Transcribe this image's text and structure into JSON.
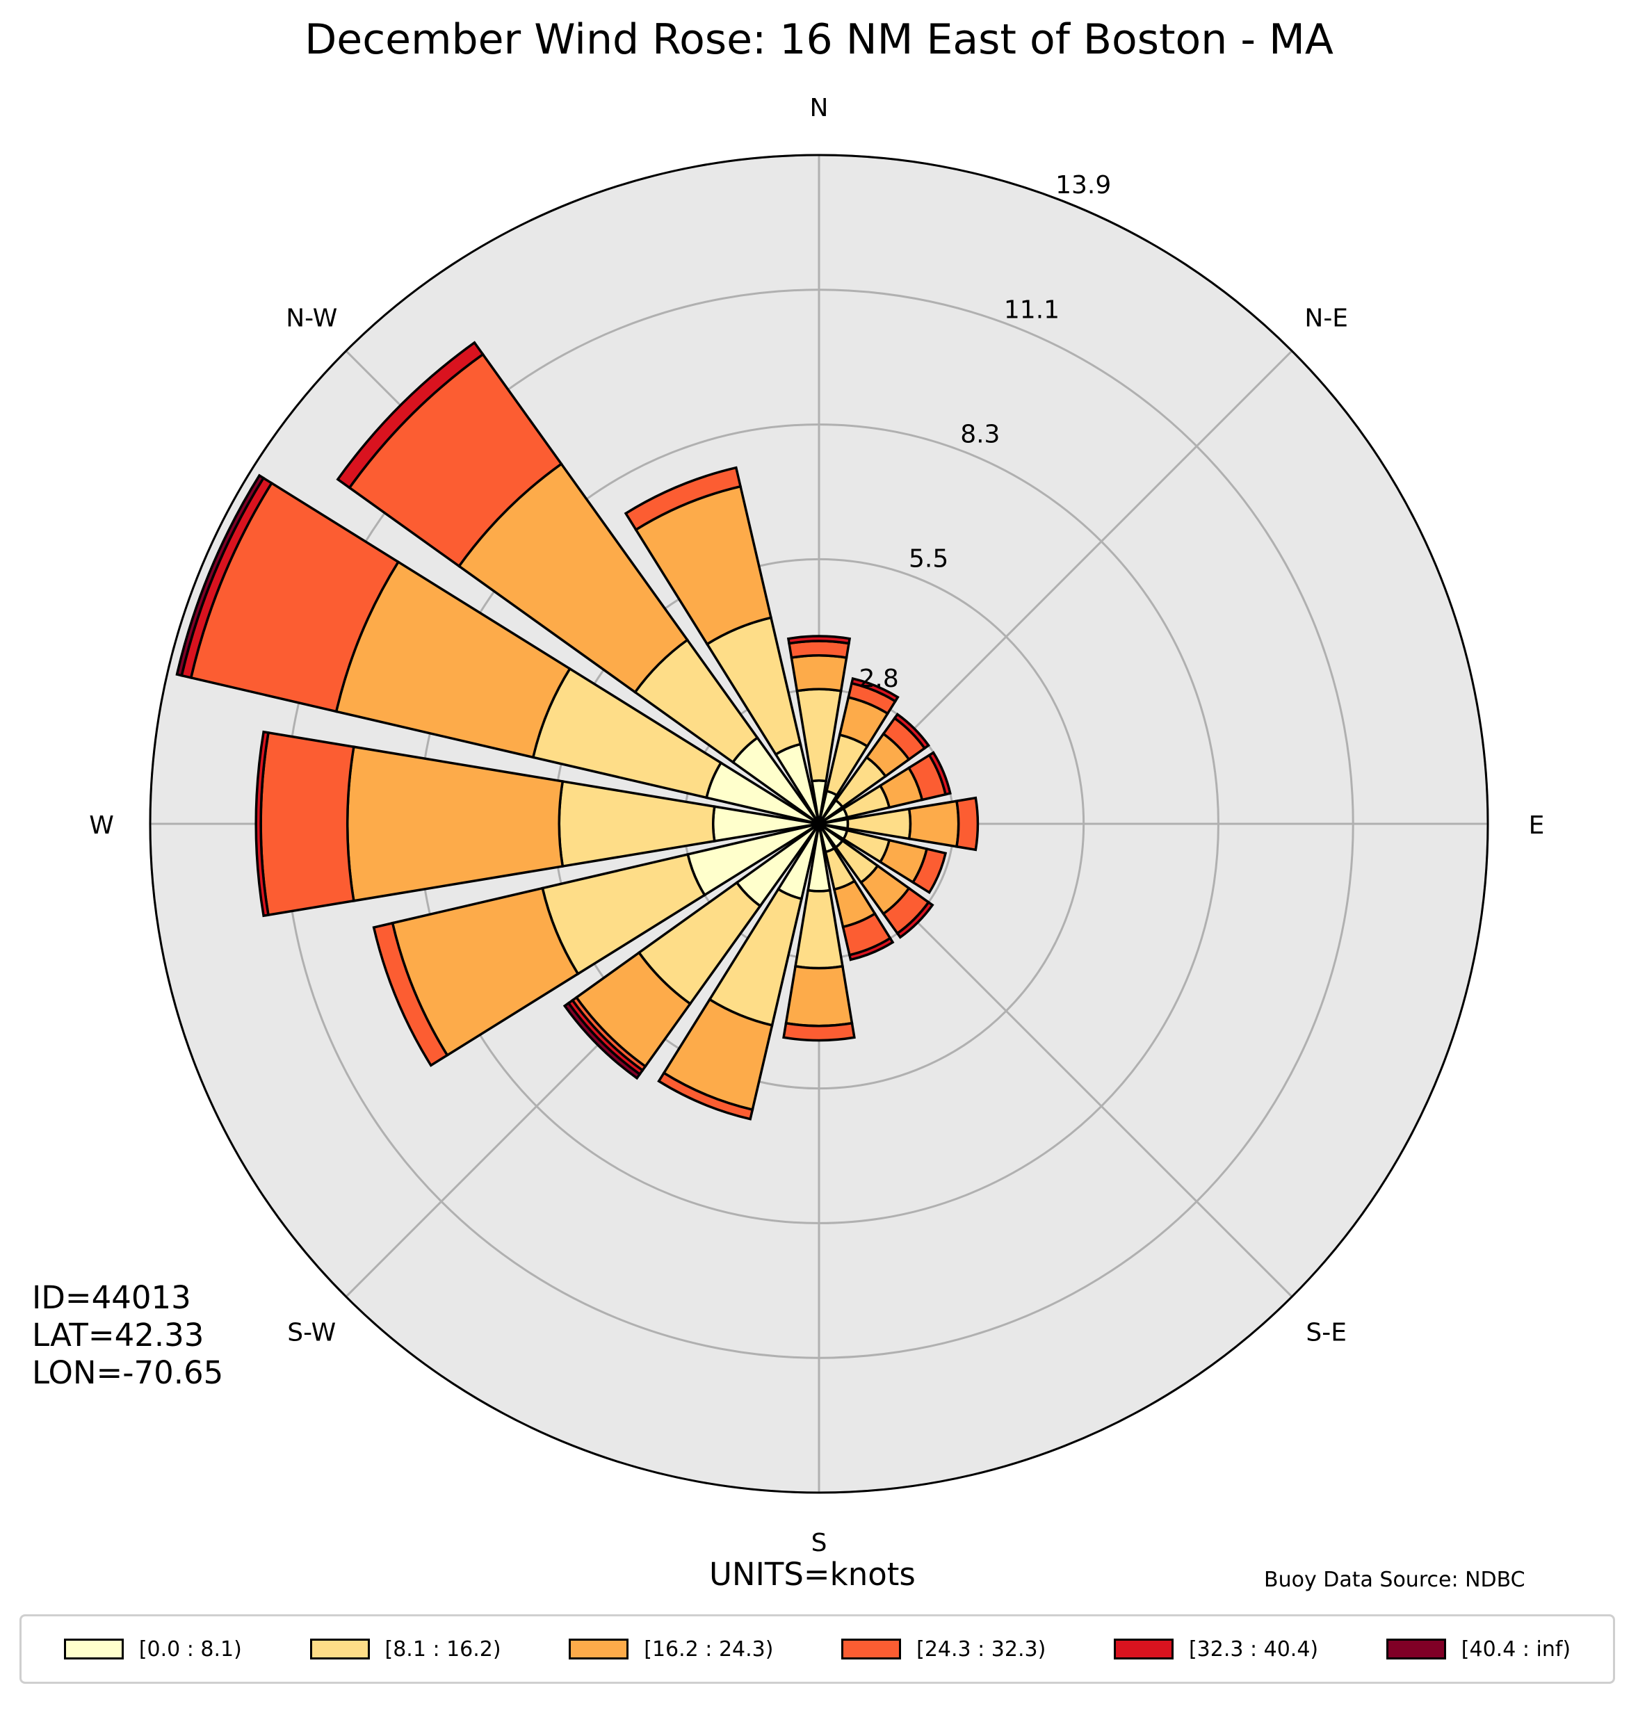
{
  "title": "December Wind Rose: 16 NM East of Boston - MA",
  "station": {
    "id": "ID=44013",
    "lat": "LAT=42.33",
    "lon": "LON=-70.65"
  },
  "units": "UNITS=knots",
  "source": "Buoy Data Source: NDBC",
  "colors": {
    "background": "#e8e8e8",
    "grid": "#b0b0b0",
    "bins": [
      "#ffffcc",
      "#fedd88",
      "#fdab4a",
      "#fc5d32",
      "#d9131f",
      "#800026"
    ]
  },
  "legend": [
    "[0.0 : 8.1)",
    "[8.1 : 16.2)",
    "[16.2 : 24.3)",
    "[24.3 : 32.3)",
    "[32.3 : 40.4)",
    "[40.4 : inf)"
  ],
  "chart_data": {
    "type": "wind-rose",
    "title": "December Wind Rose: 16 NM East of Boston - MA",
    "units": "knots",
    "radial_axis": {
      "ticks": [
        2.8,
        5.5,
        8.3,
        11.1,
        13.9
      ],
      "labels": [
        "2.8",
        "5.5",
        "8.3",
        "11.1",
        "13.9"
      ],
      "max": 13.9
    },
    "compass_labels": [
      "N",
      "N-E",
      "E",
      "S-E",
      "S",
      "S-W",
      "W",
      "N-W"
    ],
    "direction_deg": [
      0,
      22.5,
      45,
      67.5,
      90,
      112.5,
      135,
      157.5,
      180,
      202.5,
      225,
      247.5,
      270,
      292.5,
      315,
      337.5
    ],
    "bins": [
      "[0.0 : 8.1)",
      "[8.1 : 16.2)",
      "[16.2 : 24.3)",
      "[24.3 : 32.3)",
      "[32.3 : 40.4)",
      "[40.4 : inf)"
    ],
    "cumulative_frequency": [
      [
        0.9,
        2.8,
        3.5,
        3.8,
        3.9,
        3.9
      ],
      [
        0.7,
        1.9,
        2.7,
        3.0,
        3.1,
        3.1
      ],
      [
        0.6,
        1.7,
        2.3,
        2.7,
        2.8,
        2.8
      ],
      [
        0.6,
        1.5,
        2.2,
        2.7,
        2.8,
        2.8
      ],
      [
        0.6,
        1.9,
        2.9,
        3.3,
        3.3,
        3.3
      ],
      [
        0.6,
        1.5,
        2.3,
        2.7,
        2.7,
        2.7
      ],
      [
        0.6,
        1.5,
        2.3,
        2.8,
        2.9,
        2.9
      ],
      [
        0.6,
        1.4,
        2.2,
        2.8,
        2.9,
        2.9
      ],
      [
        1.4,
        3.0,
        4.2,
        4.5,
        4.5,
        4.5
      ],
      [
        1.6,
        4.3,
        6.1,
        6.3,
        6.3,
        6.3
      ],
      [
        2.1,
        4.6,
        6.2,
        6.3,
        6.4,
        6.5
      ],
      [
        2.8,
        5.9,
        9.1,
        9.5,
        9.5,
        9.5
      ],
      [
        2.2,
        5.4,
        9.8,
        11.6,
        11.7,
        11.7
      ],
      [
        2.4,
        6.1,
        10.3,
        13.4,
        13.6,
        13.7
      ],
      [
        2.2,
        4.7,
        9.2,
        12.0,
        12.3,
        12.3
      ],
      [
        1.7,
        4.4,
        7.2,
        7.6,
        7.6,
        7.6
      ]
    ]
  }
}
